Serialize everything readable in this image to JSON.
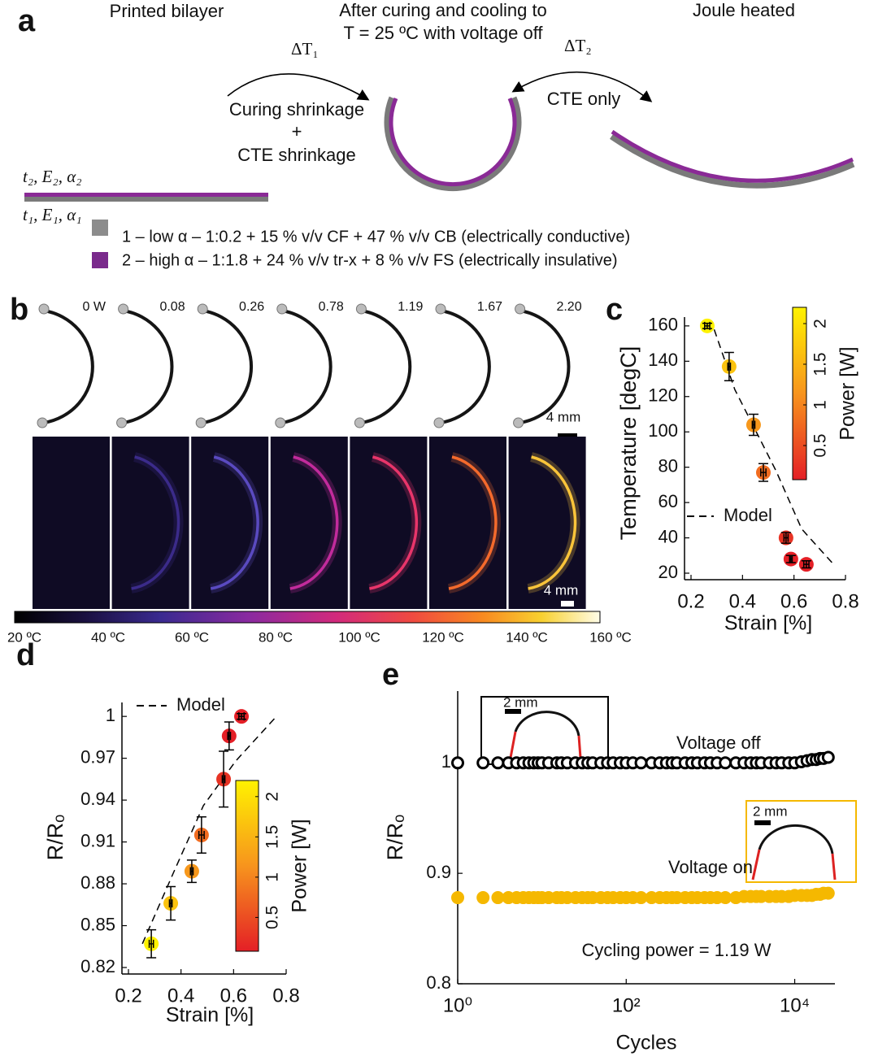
{
  "panel_a": {
    "label": "a",
    "left_title": "Printed bilayer",
    "middle_title": [
      "After curing and cooling to",
      "T = 25 ºC with voltage off"
    ],
    "right_title": "Joule heated",
    "delta_t1": "ΔT₁",
    "delta_t2": "ΔT₂",
    "arrow1_text": [
      "Curing shrinkage",
      "+",
      "CTE shrinkage"
    ],
    "arrow2_text": "CTE only",
    "top_layer": "t₂, E₂, α₂",
    "bottom_layer": "t₁, E₁, α₁",
    "legend": [
      "1 – low α – 1:0.2 + 15 % v/v CF + 47 % v/v CB (electrically conductive)",
      "2 – high α – 1:1.8 + 24 % v/v tr-x + 8 % v/v FS (electrically insulative)"
    ]
  },
  "panel_b": {
    "label": "b",
    "powers": [
      "0 W",
      "0.08",
      "0.26",
      "0.78",
      "1.19",
      "1.67",
      "2.20"
    ],
    "scale_bars": [
      "4 mm",
      "4 mm"
    ],
    "colorbar_labels": [
      "20 ºC",
      "40 ºC",
      "60 ºC",
      "80 ºC",
      "100 ºC",
      "120 ºC",
      "140 ºC",
      "160 ºC"
    ]
  },
  "chart_data": [
    {
      "panel": "c",
      "type": "scatter",
      "xlabel": "Strain [%]",
      "ylabel": "Temperature [degC]",
      "xlim": [
        0.2,
        0.8
      ],
      "xticks": [
        0.2,
        0.4,
        0.6,
        0.8
      ],
      "ylim": [
        20,
        165
      ],
      "yticks": [
        20,
        40,
        60,
        80,
        100,
        120,
        140,
        160
      ],
      "x": [
        0.263,
        0.348,
        0.443,
        0.481,
        0.569,
        0.588,
        0.648
      ],
      "values": [
        160,
        137,
        104,
        77,
        40,
        28,
        25
      ],
      "xerr": [
        0.01,
        0.005,
        0.005,
        0.01,
        0.008,
        0.005,
        0.01
      ],
      "yerr": [
        1.5,
        8,
        6,
        5,
        3,
        2,
        2
      ],
      "power": [
        2.2,
        1.67,
        1.19,
        0.78,
        0.26,
        0.08,
        0
      ],
      "colorbar": {
        "label": "Power [W]",
        "clim": [
          0.08,
          2.2
        ],
        "ticks": [
          0.5,
          1,
          1.5,
          2
        ],
        "colors": [
          "#e41f26",
          "#f7941d",
          "#fff200"
        ]
      },
      "model": {
        "name": "Model",
        "x": [
          0.29,
          0.37,
          0.45,
          0.53,
          0.63,
          0.76
        ],
        "y": [
          158,
          124,
          101,
          78,
          45,
          24
        ]
      }
    },
    {
      "panel": "d",
      "type": "scatter",
      "xlabel": "Strain [%]",
      "ylabel": "R/Rₒ",
      "xlim": [
        0.2,
        0.8
      ],
      "xticks": [
        0.2,
        0.4,
        0.6,
        0.8
      ],
      "ylim": [
        0.82,
        1.01
      ],
      "yticks": [
        0.82,
        0.85,
        0.88,
        0.91,
        0.94,
        0.97,
        1
      ],
      "x": [
        0.287,
        0.361,
        0.441,
        0.478,
        0.562,
        0.583,
        0.63
      ],
      "values": [
        0.837,
        0.866,
        0.889,
        0.915,
        0.955,
        0.986,
        1
      ],
      "xerr": [
        0.008,
        0.005,
        0.005,
        0.01,
        0.005,
        0.005,
        0.01
      ],
      "yerr": [
        0.01,
        0.012,
        0.008,
        0.013,
        0.02,
        0.01,
        0.002
      ],
      "power": [
        2.2,
        1.67,
        1.19,
        0.78,
        0.26,
        0.08,
        0
      ],
      "colorbar": {
        "label": "Power [W]",
        "clim": [
          0.08,
          2.2
        ],
        "ticks": [
          0.5,
          1,
          1.5,
          2
        ],
        "colors": [
          "#e41f26",
          "#f7941d",
          "#fff200"
        ]
      },
      "model": {
        "name": "Model",
        "x": [
          0.253,
          0.376,
          0.485,
          0.608,
          0.763
        ],
        "y": [
          0.837,
          0.89,
          0.936,
          0.968,
          1
        ]
      }
    },
    {
      "panel": "e",
      "type": "scatter",
      "xscale": "log",
      "xlabel": "Cycles",
      "ylabel": "R/Rₒ",
      "xlim": [
        1,
        30000
      ],
      "xticks": [
        {
          "value": 1,
          "label": "10⁰"
        },
        {
          "value": 100,
          "label": "10²"
        },
        {
          "value": 10000,
          "label": "10⁴"
        }
      ],
      "ylim": [
        0.8,
        1.065
      ],
      "yticks": [
        0.8,
        0.9,
        1
      ],
      "x": [
        1,
        2,
        3,
        4,
        5,
        6,
        7,
        8,
        9,
        10,
        12,
        15,
        17,
        20,
        25,
        30,
        35,
        40,
        50,
        60,
        70,
        85,
        100,
        120,
        150,
        200,
        250,
        300,
        350,
        400,
        500,
        600,
        700,
        850,
        1000,
        1200,
        1500,
        2000,
        2500,
        3000,
        3500,
        4000,
        5000,
        6000,
        7000,
        8500,
        10000,
        12000,
        14000,
        16000,
        18000,
        20000,
        22000,
        25000
      ],
      "series": [
        {
          "name": "Voltage off",
          "color": "#000000",
          "marker": "open",
          "values": [
            1,
            1,
            1,
            1,
            1,
            1,
            1,
            1,
            1,
            1,
            1,
            1,
            1,
            1,
            1,
            1,
            1,
            1,
            1,
            1,
            1,
            1,
            1,
            1,
            1,
            1,
            1,
            1,
            1,
            1,
            1,
            1,
            1,
            1,
            1,
            1,
            1,
            1,
            1,
            1,
            1,
            1,
            1,
            1,
            1,
            1,
            1,
            1.001,
            1.002,
            1.003,
            1.003,
            1.004,
            1.004,
            1.005
          ]
        },
        {
          "name": "Voltage on",
          "color": "#f5b800",
          "marker": "filled",
          "values": [
            0.878,
            0.878,
            0.878,
            0.878,
            0.878,
            0.878,
            0.878,
            0.878,
            0.878,
            0.878,
            0.878,
            0.878,
            0.878,
            0.878,
            0.878,
            0.878,
            0.878,
            0.878,
            0.878,
            0.878,
            0.878,
            0.878,
            0.878,
            0.878,
            0.878,
            0.878,
            0.878,
            0.878,
            0.878,
            0.878,
            0.878,
            0.878,
            0.878,
            0.878,
            0.878,
            0.878,
            0.878,
            0.878,
            0.879,
            0.879,
            0.879,
            0.879,
            0.879,
            0.879,
            0.879,
            0.879,
            0.88,
            0.88,
            0.88,
            0.88,
            0.881,
            0.881,
            0.882,
            0.882
          ]
        }
      ],
      "annotations": [
        "Cycling power = 1.19 W"
      ],
      "inset_labels": [
        "2 mm",
        "2 mm"
      ]
    }
  ]
}
